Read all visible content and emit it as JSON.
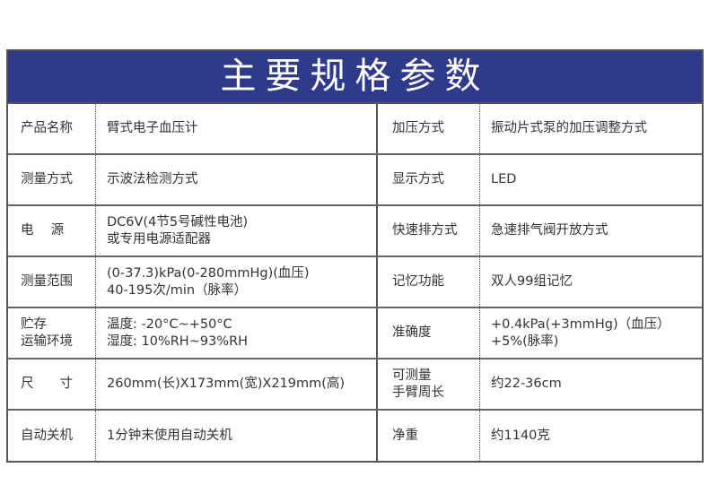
{
  "title": "主要规格参数",
  "header_color": "#2f3a8a",
  "rows": [
    {
      "label1": [
        "产品名称"
      ],
      "value1": [
        "臂式电子血压计"
      ],
      "label2": [
        "加压方式"
      ],
      "value2": [
        "振动片式泵的加压调整方式"
      ]
    },
    {
      "label1": [
        "测量方式"
      ],
      "value1": [
        "示波法检测方式"
      ],
      "label2": [
        "显示方式"
      ],
      "value2": [
        "LED"
      ]
    },
    {
      "label1": [
        "电　 源"
      ],
      "value1": [
        "DC6V(4节5号碱性电池)",
        "或专用电源适配器"
      ],
      "label2": [
        "快速排方式"
      ],
      "value2": [
        "急速排气阀开放方式"
      ]
    },
    {
      "label1": [
        "测量范围"
      ],
      "value1": [
        "(0-37.3)kPa(0-280mmHg)(血压)",
        "40-195次/min（脉率）"
      ],
      "label2": [
        "记忆功能"
      ],
      "value2": [
        "双人99组记忆"
      ]
    },
    {
      "label1": [
        "贮存",
        "运输环境"
      ],
      "value1": [
        "温度: -20°C~+50°C",
        "湿度: 10%RH~93%RH"
      ],
      "label2": [
        "准确度"
      ],
      "value2": [
        "+0.4kPa(+3mmHg)（血压）",
        "+5%(脉率)"
      ]
    },
    {
      "label1": [
        "尺　　寸"
      ],
      "value1": [
        "260mm(长)X173mm(宽)X219mm(高)"
      ],
      "label2": [
        "可测量",
        "手臂周长"
      ],
      "value2": [
        "约22-36cm"
      ]
    },
    {
      "label1": [
        "自动关机"
      ],
      "value1": [
        "1分钟末使用自动关机"
      ],
      "label2": [
        "净重"
      ],
      "value2": [
        "约1140克"
      ]
    }
  ]
}
